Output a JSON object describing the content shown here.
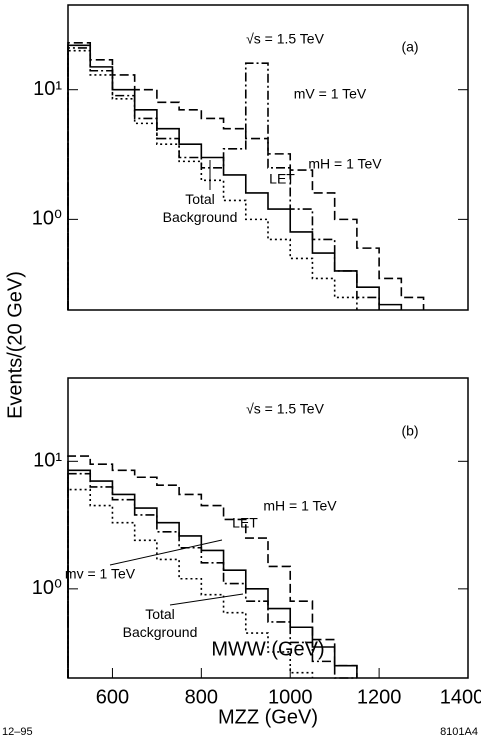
{
  "ylabel": "Events/(20 GeV)",
  "footer_left": "12–95",
  "footer_right": "8101A4",
  "chart_data": [
    {
      "type": "line",
      "step": true,
      "xlabel": "MWW  (GeV)",
      "annotation": "√s = 1.5 TeV",
      "panel": "(a)",
      "log_y": true,
      "xlim": [
        500,
        1400
      ],
      "ylim": [
        0.2,
        45
      ],
      "yticks": [
        {
          "value": 1,
          "label": "10⁰"
        },
        {
          "value": 10,
          "label": "10¹"
        }
      ],
      "x": [
        500,
        550,
        600,
        650,
        700,
        750,
        800,
        850,
        900,
        950,
        1000,
        1050,
        1100,
        1150,
        1200,
        1250,
        1300
      ],
      "series": [
        {
          "name": "Total Background",
          "color": "#000",
          "linestyle": "dotted",
          "values": [
            20,
            13,
            8.5,
            5.5,
            3.8,
            2.8,
            2,
            1.4,
            1,
            0.7,
            0.5,
            0.35,
            0.25,
            null,
            null,
            null,
            null
          ]
        },
        {
          "name": "LET",
          "color": "#000",
          "linestyle": "solid",
          "values": [
            22,
            15,
            10,
            7,
            5,
            3.8,
            3,
            2.2,
            1.6,
            1.2,
            0.8,
            0.55,
            0.4,
            0.3,
            0.22,
            null,
            null
          ]
        },
        {
          "name": "mV = 1 TeV",
          "color": "#000",
          "linestyle": "dashdot",
          "values": [
            21,
            14,
            9,
            6,
            4.2,
            3,
            2.5,
            3.5,
            16,
            2.5,
            1.2,
            0.7,
            0.4,
            0.25,
            null,
            null,
            null
          ]
        },
        {
          "name": "mH = 1 TeV",
          "color": "#000",
          "linestyle": "dashed",
          "values": [
            23,
            17,
            13,
            10,
            8,
            7,
            6,
            5,
            4.2,
            3.2,
            2.4,
            1.6,
            1,
            0.6,
            0.35,
            0.25,
            null
          ]
        }
      ]
    },
    {
      "type": "line",
      "step": true,
      "xlabel": "MZZ  (GeV)",
      "annotation": "√s = 1.5 TeV",
      "panel": "(b)",
      "log_y": true,
      "xlim": [
        500,
        1400
      ],
      "ylim": [
        0.2,
        45
      ],
      "xticks": [
        600,
        800,
        1000,
        1200,
        1400
      ],
      "yticks": [
        {
          "value": 1,
          "label": "10⁰"
        },
        {
          "value": 10,
          "label": "10¹"
        }
      ],
      "x": [
        500,
        550,
        600,
        650,
        700,
        750,
        800,
        850,
        900,
        950,
        1000,
        1050,
        1100,
        1150,
        1200,
        1250,
        1300
      ],
      "series": [
        {
          "name": "Total Background",
          "color": "#000",
          "linestyle": "dotted",
          "values": [
            6,
            4.5,
            3.3,
            2.4,
            1.7,
            1.2,
            0.9,
            0.65,
            0.45,
            0.32,
            0.22,
            null,
            null,
            null,
            null,
            null,
            null
          ]
        },
        {
          "name": "LET",
          "color": "#000",
          "linestyle": "solid",
          "values": [
            8.5,
            7,
            5.5,
            4.3,
            3.3,
            2.6,
            2,
            1.4,
            1,
            0.7,
            0.5,
            0.35,
            0.25,
            null,
            null,
            null,
            null
          ]
        },
        {
          "name": "mv = 1 TeV",
          "color": "#000",
          "linestyle": "dashdot",
          "values": [
            8,
            6.3,
            5,
            3.8,
            2.8,
            2.1,
            1.6,
            1.1,
            0.8,
            0.55,
            0.38,
            0.27,
            0.2,
            null,
            null,
            null,
            null
          ]
        },
        {
          "name": "mH = 1 TeV",
          "color": "#000",
          "linestyle": "dashed",
          "values": [
            11,
            9.5,
            8.5,
            7.5,
            6.5,
            5.5,
            4.5,
            3.5,
            2.5,
            1.5,
            0.8,
            0.4,
            0.25,
            null,
            null,
            null,
            null
          ]
        }
      ]
    }
  ]
}
